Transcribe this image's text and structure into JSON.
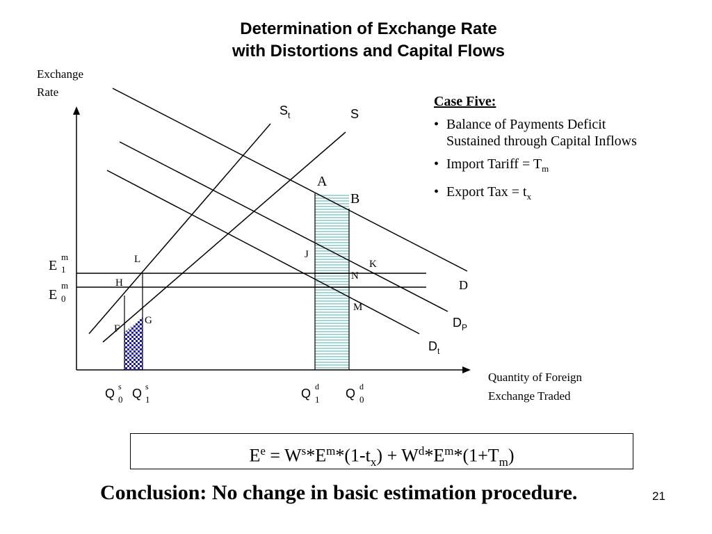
{
  "slide": {
    "title_line1": "Determination of  Exchange Rate",
    "title_line2": "with Distortions  and Capital Flows",
    "page_number": "21"
  },
  "diagram": {
    "y_axis_label_1": "Exchange",
    "y_axis_label_2": "Rate",
    "x_axis_label_1": "Quantity of Foreign",
    "x_axis_label_2": "Exchange Traded",
    "curves": {
      "st": {
        "main": "S",
        "sub": "t"
      },
      "s": {
        "main": "S"
      },
      "d": {
        "main": "D"
      },
      "dp": {
        "main": "D",
        "sub": "P"
      },
      "dt": {
        "main": "D",
        "sub": "t"
      }
    },
    "points": {
      "a": "A",
      "b": "B",
      "j": "J",
      "k": "K",
      "n": "N",
      "m": "M",
      "l": "L",
      "h": "H",
      "g": "G",
      "f": "F"
    },
    "y_ticks": {
      "e1": {
        "main": "E",
        "sup": "m",
        "sub": "1"
      },
      "e0": {
        "main": "E",
        "sup": "m",
        "sub": "0"
      }
    },
    "x_ticks": {
      "q0s": {
        "main": "Q",
        "sup": "s",
        "sub": "0"
      },
      "q1s": {
        "main": "Q",
        "sup": "s",
        "sub": "1"
      },
      "q1d": {
        "main": "Q",
        "sup": "d",
        "sub": "1"
      },
      "q0d": {
        "main": "Q",
        "sup": "d",
        "sub": "0"
      }
    }
  },
  "case_box": {
    "heading": "Case Five:",
    "bullet_char": "•",
    "item1_line1": "Balance of Payments Deficit",
    "item1_line2": "Sustained through Capital Inflows",
    "item2_main": "Import Tariff = T",
    "item2_sub": "m",
    "item3_main": "Export Tax = t",
    "item3_sub": "x"
  },
  "formula": {
    "e": "E",
    "e_sup": "e",
    "part1": " = W",
    "ws_sup": "s",
    "part2": "*E",
    "em1_sup": "m",
    "part3": "*(1-t",
    "tx_sub": "x",
    "part4": ") + W",
    "wd_sup": "d",
    "part5": "*E",
    "em2_sup": "m",
    "part6": "*(1+T",
    "tm_sub": "m",
    "part7": ")"
  },
  "conclusion": "Conclusion:  No change in basic estimation procedure.",
  "colors": {
    "shade_stripe": "#a9d3d3",
    "checker_dark": "#1a1aa8",
    "line": "#000000"
  }
}
